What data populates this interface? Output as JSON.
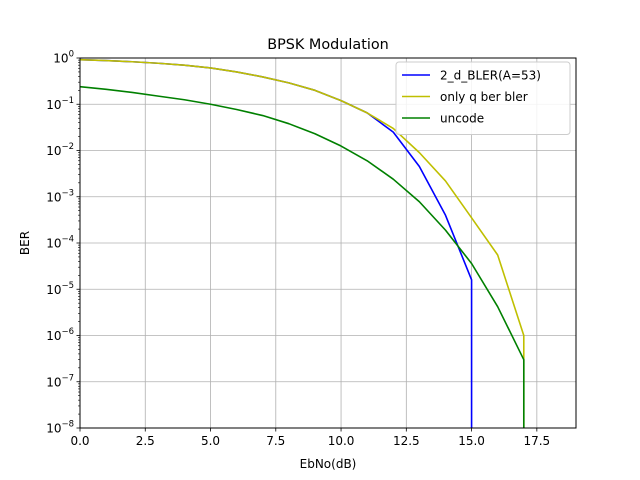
{
  "chart_data": {
    "type": "line",
    "title": "BPSK Modulation",
    "xlabel": "EbNo(dB)",
    "ylabel": "BER",
    "xlim": [
      0,
      19
    ],
    "ylim": [
      1e-08,
      1
    ],
    "yscale": "log",
    "grid": true,
    "legend_position": "top-right",
    "x_ticks": [
      0,
      2.5,
      5,
      7.5,
      10,
      12.5,
      15,
      17.5
    ],
    "x_tick_labels": [
      "0.0",
      "2.5",
      "5.0",
      "7.5",
      "10.0",
      "12.5",
      "15.0",
      "17.5"
    ],
    "y_ticks": [
      1e-08,
      1e-07,
      1e-06,
      1e-05,
      0.0001,
      0.001,
      0.01,
      0.1,
      1
    ],
    "y_tick_labels": [
      {
        "base": "10",
        "exp": "−8"
      },
      {
        "base": "10",
        "exp": "−7"
      },
      {
        "base": "10",
        "exp": "−6"
      },
      {
        "base": "10",
        "exp": "−5"
      },
      {
        "base": "10",
        "exp": "−4"
      },
      {
        "base": "10",
        "exp": "−3"
      },
      {
        "base": "10",
        "exp": "−2"
      },
      {
        "base": "10",
        "exp": "−1"
      },
      {
        "base": "10",
        "exp": "0"
      }
    ],
    "series": [
      {
        "name": "2_d_BLER(A=53)",
        "color": "#0000ff",
        "x": [
          0,
          1,
          2,
          3,
          4,
          5,
          6,
          7,
          8,
          9,
          10,
          11,
          12,
          13,
          14,
          15,
          15
        ],
        "y": [
          0.92,
          0.88,
          0.83,
          0.77,
          0.7,
          0.61,
          0.5,
          0.39,
          0.29,
          0.2,
          0.12,
          0.065,
          0.025,
          0.0045,
          0.0004,
          1.6e-05,
          1e-08
        ]
      },
      {
        "name": "only q ber bler",
        "color": "#bfbf00",
        "x": [
          0,
          1,
          2,
          3,
          4,
          5,
          6,
          7,
          8,
          9,
          10,
          11,
          12,
          13,
          14,
          15,
          16,
          17,
          17
        ],
        "y": [
          0.92,
          0.88,
          0.83,
          0.77,
          0.7,
          0.61,
          0.5,
          0.39,
          0.29,
          0.2,
          0.12,
          0.065,
          0.03,
          0.009,
          0.0022,
          0.00035,
          5.5e-05,
          1e-06,
          1e-08
        ]
      },
      {
        "name": "uncode",
        "color": "#008000",
        "x": [
          0,
          1,
          2,
          3,
          4,
          5,
          6,
          7,
          8,
          9,
          10,
          11,
          12,
          13,
          14,
          15,
          16,
          17,
          17
        ],
        "y": [
          0.24,
          0.21,
          0.18,
          0.15,
          0.125,
          0.1,
          0.077,
          0.057,
          0.038,
          0.023,
          0.0125,
          0.006,
          0.0024,
          0.00078,
          0.00019,
          3.6e-05,
          4.2e-06,
          3e-07,
          1e-08
        ]
      }
    ]
  }
}
